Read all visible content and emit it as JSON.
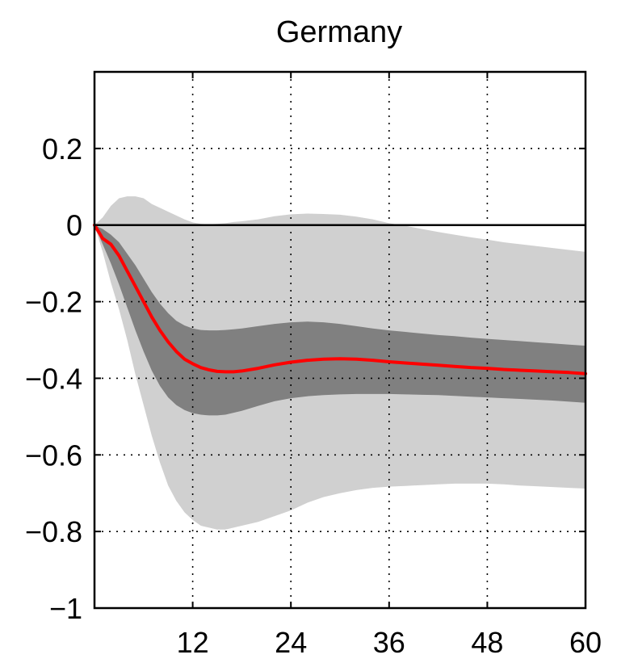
{
  "chart_data": {
    "type": "area",
    "title": "Germany",
    "xlabel": "",
    "ylabel": "",
    "xlim": [
      0,
      60
    ],
    "ylim": [
      -1,
      0.4
    ],
    "x_ticks": [
      12,
      24,
      36,
      48,
      60
    ],
    "x_tick_labels": [
      "12",
      "24",
      "36",
      "48",
      "60"
    ],
    "y_ticks": [
      0.2,
      0,
      -0.2,
      -0.4,
      -0.6,
      -0.8,
      -1
    ],
    "y_tick_labels": [
      "0.2",
      "0",
      "−0.2",
      "−0.4",
      "−0.6",
      "−0.8",
      "−1"
    ],
    "grid": true,
    "zero_line": true,
    "x": [
      0,
      1,
      2,
      3,
      4,
      5,
      6,
      7,
      8,
      9,
      10,
      11,
      12,
      13,
      14,
      15,
      16,
      17,
      18,
      20,
      22,
      24,
      26,
      28,
      30,
      32,
      34,
      36,
      38,
      40,
      42,
      44,
      46,
      48,
      50,
      52,
      54,
      56,
      58,
      60
    ],
    "series": [
      {
        "role": "outer_band",
        "color": "#d0d0d0",
        "upper": [
          0,
          0.02,
          0.05,
          0.07,
          0.075,
          0.075,
          0.07,
          0.055,
          0.045,
          0.035,
          0.025,
          0.015,
          0.007,
          0.003,
          0.002,
          0.003,
          0.005,
          0.008,
          0.01,
          0.015,
          0.023,
          0.028,
          0.03,
          0.029,
          0.027,
          0.022,
          0.015,
          0.005,
          -0.002,
          -0.01,
          -0.018,
          -0.025,
          -0.032,
          -0.038,
          -0.045,
          -0.05,
          -0.055,
          -0.06,
          -0.065,
          -0.07
        ],
        "lower": [
          0,
          -0.07,
          -0.15,
          -0.22,
          -0.3,
          -0.39,
          -0.47,
          -0.55,
          -0.62,
          -0.68,
          -0.72,
          -0.75,
          -0.77,
          -0.785,
          -0.79,
          -0.795,
          -0.795,
          -0.79,
          -0.785,
          -0.775,
          -0.76,
          -0.745,
          -0.725,
          -0.71,
          -0.7,
          -0.692,
          -0.686,
          -0.683,
          -0.681,
          -0.679,
          -0.677,
          -0.675,
          -0.675,
          -0.675,
          -0.677,
          -0.68,
          -0.682,
          -0.684,
          -0.686,
          -0.688
        ]
      },
      {
        "role": "inner_band",
        "color": "#808080",
        "upper": [
          0,
          -0.01,
          -0.025,
          -0.045,
          -0.075,
          -0.105,
          -0.14,
          -0.175,
          -0.205,
          -0.23,
          -0.25,
          -0.262,
          -0.27,
          -0.274,
          -0.275,
          -0.275,
          -0.274,
          -0.272,
          -0.27,
          -0.264,
          -0.258,
          -0.254,
          -0.252,
          -0.254,
          -0.258,
          -0.264,
          -0.27,
          -0.275,
          -0.279,
          -0.283,
          -0.287,
          -0.29,
          -0.294,
          -0.297,
          -0.3,
          -0.303,
          -0.306,
          -0.309,
          -0.312,
          -0.315
        ],
        "lower": [
          0,
          -0.05,
          -0.1,
          -0.155,
          -0.215,
          -0.275,
          -0.33,
          -0.38,
          -0.42,
          -0.45,
          -0.47,
          -0.483,
          -0.491,
          -0.495,
          -0.497,
          -0.497,
          -0.495,
          -0.49,
          -0.485,
          -0.472,
          -0.46,
          -0.452,
          -0.447,
          -0.444,
          -0.442,
          -0.441,
          -0.441,
          -0.441,
          -0.442,
          -0.443,
          -0.444,
          -0.446,
          -0.448,
          -0.45,
          -0.452,
          -0.454,
          -0.456,
          -0.458,
          -0.461,
          -0.464
        ]
      },
      {
        "role": "median",
        "color": "#ff0000",
        "values": [
          0,
          -0.035,
          -0.05,
          -0.08,
          -0.12,
          -0.16,
          -0.2,
          -0.24,
          -0.275,
          -0.305,
          -0.33,
          -0.35,
          -0.362,
          -0.372,
          -0.378,
          -0.382,
          -0.383,
          -0.383,
          -0.381,
          -0.374,
          -0.365,
          -0.358,
          -0.353,
          -0.35,
          -0.349,
          -0.35,
          -0.353,
          -0.357,
          -0.36,
          -0.363,
          -0.366,
          -0.369,
          -0.372,
          -0.374,
          -0.377,
          -0.379,
          -0.381,
          -0.383,
          -0.385,
          -0.388
        ]
      }
    ]
  }
}
